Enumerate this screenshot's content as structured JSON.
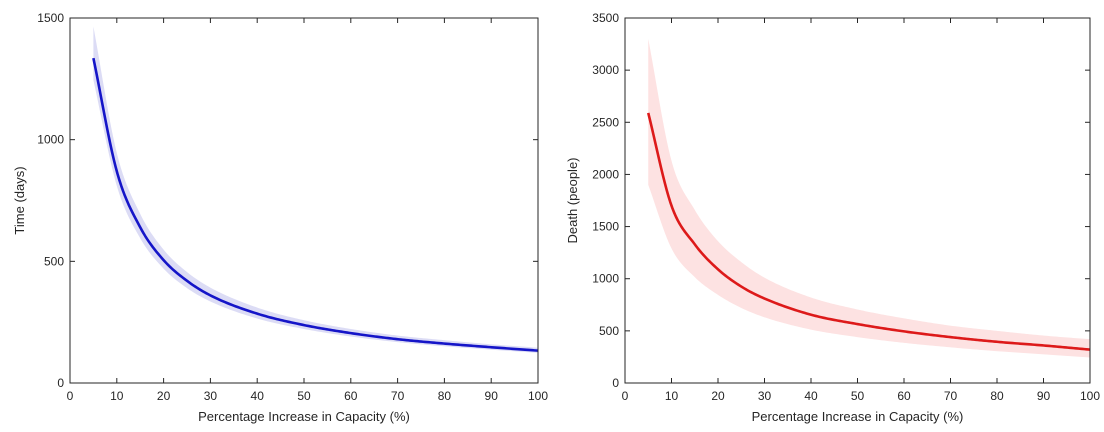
{
  "chart_data": [
    {
      "type": "area",
      "xlabel": "Percentage Increase in Capacity (%)",
      "ylabel": "Time (days)",
      "xlim": [
        0,
        100
      ],
      "ylim": [
        0,
        1500
      ],
      "xticks": [
        0,
        10,
        20,
        30,
        40,
        50,
        60,
        70,
        80,
        90,
        100
      ],
      "yticks": [
        0,
        500,
        1000,
        1500
      ],
      "grid": false,
      "line_color": "#1515c8",
      "band_color": "#dcdcf5",
      "x": [
        5,
        10,
        15,
        20,
        25,
        30,
        40,
        50,
        60,
        70,
        80,
        90,
        100
      ],
      "series": [
        {
          "values": [
            1335,
            870,
            640,
            505,
            420,
            360,
            285,
            238,
            205,
            180,
            162,
            147,
            133
          ]
        }
      ],
      "band_lower": [
        1245,
        810,
        595,
        470,
        390,
        335,
        265,
        222,
        191,
        168,
        151,
        137,
        124
      ],
      "band_upper": [
        1465,
        945,
        695,
        548,
        456,
        392,
        310,
        258,
        222,
        195,
        176,
        159,
        145
      ]
    },
    {
      "type": "area",
      "xlabel": "Percentage Increase in Capacity (%)",
      "ylabel": "Death (people)",
      "xlim": [
        0,
        100
      ],
      "ylim": [
        0,
        3500
      ],
      "xticks": [
        0,
        10,
        20,
        30,
        40,
        50,
        60,
        70,
        80,
        90,
        100
      ],
      "yticks": [
        0,
        500,
        1000,
        1500,
        2000,
        2500,
        3000,
        3500
      ],
      "grid": false,
      "line_color": "#dd1a1a",
      "band_color": "#fde2e2",
      "x": [
        5,
        10,
        15,
        20,
        25,
        30,
        40,
        50,
        60,
        70,
        80,
        90,
        100
      ],
      "series": [
        {
          "values": [
            2590,
            1700,
            1330,
            1090,
            925,
            810,
            655,
            565,
            495,
            440,
            395,
            360,
            320
          ]
        }
      ],
      "band_lower": [
        1900,
        1290,
        1015,
        845,
        720,
        630,
        512,
        440,
        385,
        342,
        305,
        275,
        245
      ],
      "band_upper": [
        3300,
        2130,
        1660,
        1360,
        1160,
        1010,
        820,
        705,
        620,
        550,
        500,
        455,
        420
      ]
    }
  ]
}
